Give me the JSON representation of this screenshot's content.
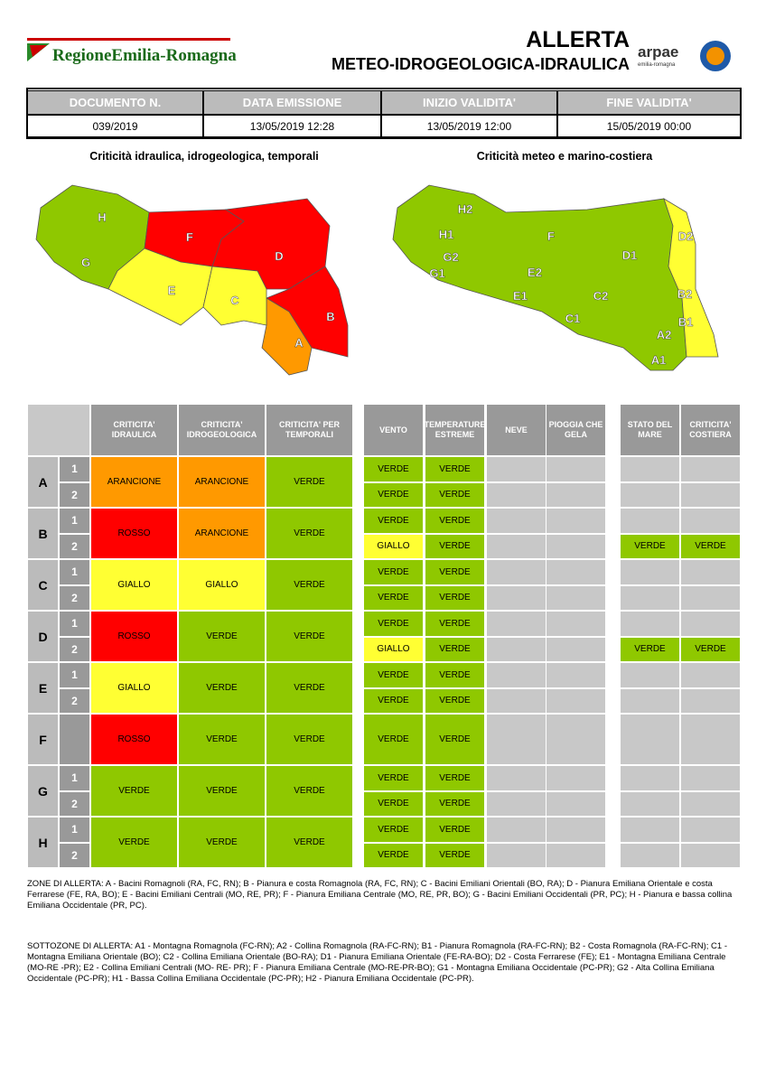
{
  "header": {
    "logo": "RegioneEmilia-Romagna",
    "title": "ALLERTA",
    "subtitle": "METEO-IDROGEOLOGICA-IDRAULICA",
    "arpae": "arpae",
    "arpae_region": "emilia-romagna"
  },
  "document": {
    "headers": [
      "DOCUMENTO N.",
      "DATA EMISSIONE",
      "INIZIO VALIDITA'",
      "FINE VALIDITA'"
    ],
    "values": [
      "039/2019",
      "13/05/2019 12:28",
      "13/05/2019 12:00",
      "15/05/2019 00:00"
    ]
  },
  "maps": [
    {
      "title": "Criticità idraulica, idrogeologica, temporali",
      "labels": [
        "H",
        "F",
        "G",
        "D",
        "E",
        "C",
        "B",
        "A"
      ]
    },
    {
      "title": "Criticità meteo e marino-costiera",
      "labels": [
        "H2",
        "H1",
        "G2",
        "G1",
        "F",
        "D1",
        "D2",
        "E2",
        "E1",
        "C2",
        "B2",
        "C1",
        "B1",
        "A2",
        "A1"
      ]
    }
  ],
  "table": {
    "hydro_headers": [
      "CRITICITA' IDRAULICA",
      "CRITICITA' IDROGEOLOGICA",
      "CRITICITA' PER TEMPORALI"
    ],
    "meteo_headers": [
      "VENTO",
      "TEMPERATURE ESTREME",
      "NEVE",
      "PIOGGIA CHE GELA"
    ],
    "sea_headers": [
      "STATO DEL MARE",
      "CRITICITA' COSTIERA"
    ],
    "zones": [
      {
        "zone": "A",
        "idraulica": "ARANCIONE",
        "idrogeologica": "ARANCIONE",
        "temporali": "VERDE",
        "subzones": [
          {
            "label": "1",
            "vento": "VERDE",
            "temperature": "VERDE"
          },
          {
            "label": "2",
            "vento": "VERDE",
            "temperature": "VERDE"
          }
        ]
      },
      {
        "zone": "B",
        "idraulica": "ROSSO",
        "idrogeologica": "ARANCIONE",
        "temporali": "VERDE",
        "subzones": [
          {
            "label": "1",
            "vento": "VERDE",
            "temperature": "VERDE"
          },
          {
            "label": "2",
            "vento": "GIALLO",
            "temperature": "VERDE",
            "mare": "VERDE",
            "costiera": "VERDE"
          }
        ]
      },
      {
        "zone": "C",
        "idraulica": "GIALLO",
        "idrogeologica": "GIALLO",
        "temporali": "VERDE",
        "subzones": [
          {
            "label": "1",
            "vento": "VERDE",
            "temperature": "VERDE"
          },
          {
            "label": "2",
            "vento": "VERDE",
            "temperature": "VERDE"
          }
        ]
      },
      {
        "zone": "D",
        "idraulica": "ROSSO",
        "idrogeologica": "VERDE",
        "temporali": "VERDE",
        "subzones": [
          {
            "label": "1",
            "vento": "VERDE",
            "temperature": "VERDE"
          },
          {
            "label": "2",
            "vento": "GIALLO",
            "temperature": "VERDE",
            "mare": "VERDE",
            "costiera": "VERDE"
          }
        ]
      },
      {
        "zone": "E",
        "idraulica": "GIALLO",
        "idrogeologica": "VERDE",
        "temporali": "VERDE",
        "subzones": [
          {
            "label": "1",
            "vento": "VERDE",
            "temperature": "VERDE"
          },
          {
            "label": "2",
            "vento": "VERDE",
            "temperature": "VERDE"
          }
        ]
      },
      {
        "zone": "F",
        "idraulica": "ROSSO",
        "idrogeologica": "VERDE",
        "temporali": "VERDE",
        "subzones": [
          {
            "vento": "VERDE",
            "temperature": "VERDE"
          }
        ]
      },
      {
        "zone": "G",
        "idraulica": "VERDE",
        "idrogeologica": "VERDE",
        "temporali": "VERDE",
        "subzones": [
          {
            "label": "1",
            "vento": "VERDE",
            "temperature": "VERDE"
          },
          {
            "label": "2",
            "vento": "VERDE",
            "temperature": "VERDE"
          }
        ]
      },
      {
        "zone": "H",
        "idraulica": "VERDE",
        "idrogeologica": "VERDE",
        "temporali": "VERDE",
        "subzones": [
          {
            "label": "1",
            "vento": "VERDE",
            "temperature": "VERDE"
          },
          {
            "label": "2",
            "vento": "VERDE",
            "temperature": "VERDE"
          }
        ]
      }
    ]
  },
  "notes": {
    "zones": "ZONE DI ALLERTA: A - Bacini Romagnoli (RA, FC, RN); B - Pianura e costa Romagnola (RA, FC, RN); C - Bacini Emiliani Orientali (BO, RA); D - Pianura Emiliana Orientale e costa Ferrarese (FE, RA, BO); E - Bacini Emiliani Centrali (MO, RE, PR); F - Pianura Emiliana Centrale (MO, RE, PR, BO); G - Bacini Emiliani Occidentali (PR, PC); H - Pianura e bassa collina Emiliana Occidentale (PR, PC).",
    "subzones": "SOTTOZONE DI ALLERTA: A1 - Montagna Romagnola (FC-RN); A2 - Collina Romagnola (RA-FC-RN); B1 - Pianura Romagnola (RA-FC-RN); B2 - Costa Romagnola (RA-FC-RN); C1 - Montagna Emiliana Orientale (BO); C2 - Collina Emiliana Orientale (BO-RA); D1 - Pianura Emiliana Orientale (FE-RA-BO); D2 - Costa Ferrarese (FE); E1 - Montagna Emiliana Centrale (MO-RE -PR); E2 - Collina Emiliani Centrali (MO- RE- PR); F - Pianura Emiliana Centrale (MO-RE-PR-BO); G1 - Montagna Emiliana Occidentale (PC-PR); G2 - Alta Collina Emiliana Occidentale (PC-PR); H1 - Bassa Collina Emiliana Occidentale (PC-PR); H2 - Pianura Emiliana Occidentale (PC-PR)."
  }
}
